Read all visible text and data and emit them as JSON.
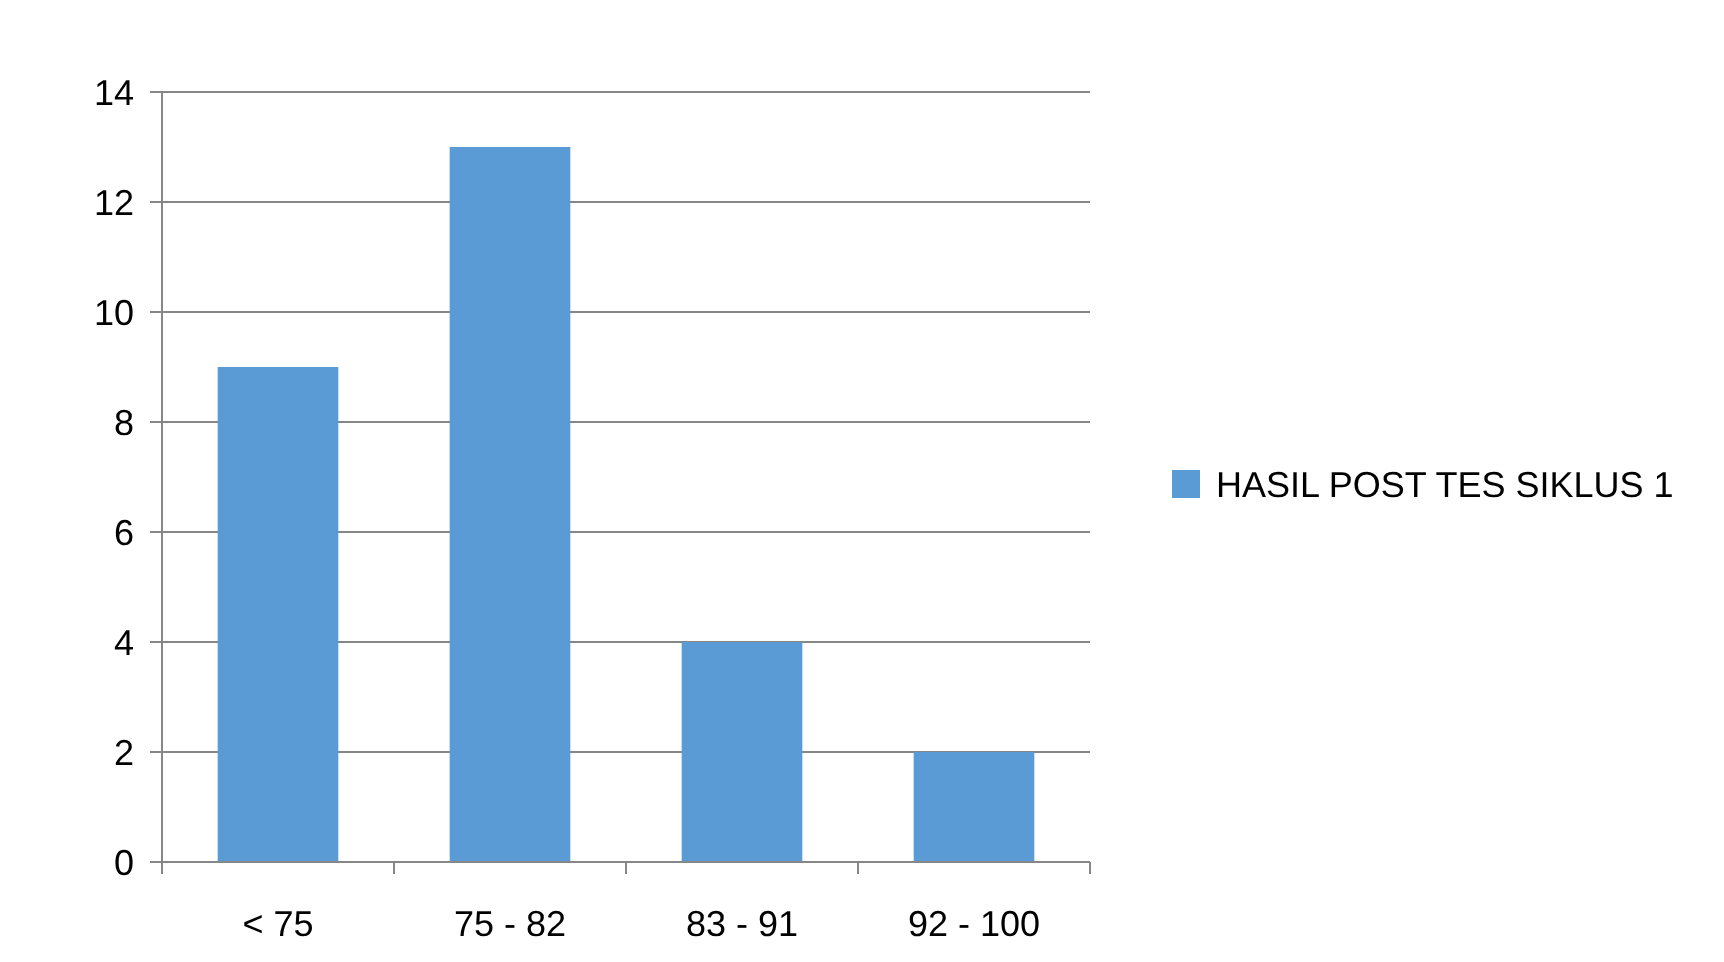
{
  "chart_data": {
    "type": "bar",
    "categories": [
      "< 75",
      "75 - 82",
      "83 - 91",
      "92 - 100"
    ],
    "series": [
      {
        "name": "HASIL POST TES SIKLUS 1",
        "color": "#5b9bd5",
        "values": [
          9,
          13,
          4,
          2
        ]
      }
    ],
    "ylim": [
      0,
      14
    ],
    "yticks": [
      0,
      2,
      4,
      6,
      8,
      10,
      12,
      14
    ],
    "grid": "y",
    "legend": "right"
  }
}
